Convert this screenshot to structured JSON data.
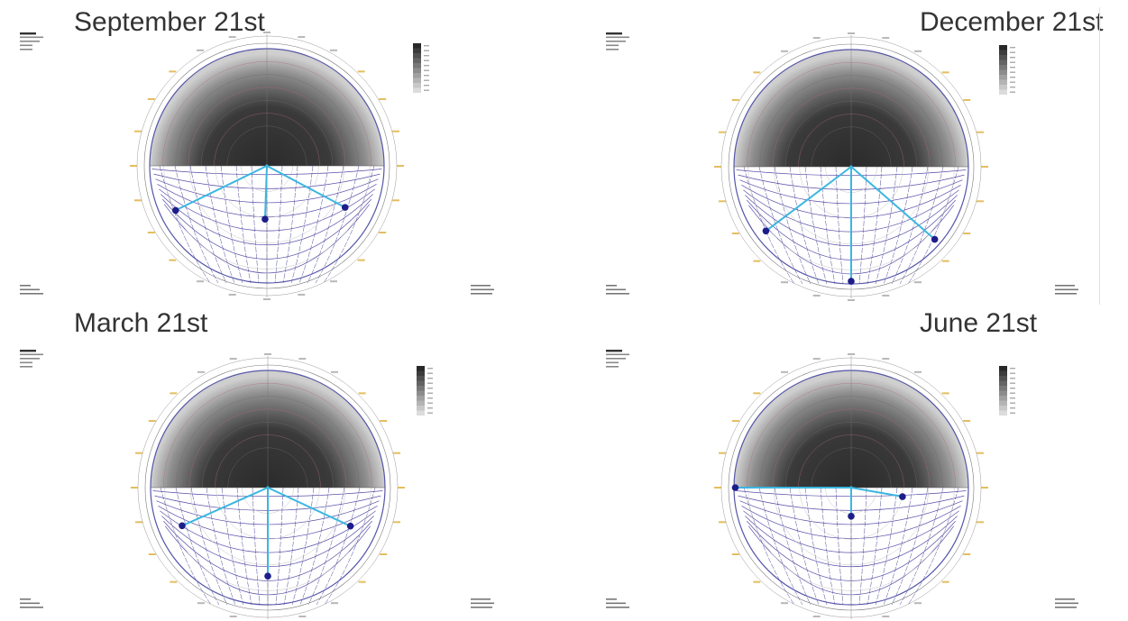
{
  "panels": [
    {
      "id": "september",
      "title": "September 21st",
      "sun_vectors": [
        {
          "azimuth_deg": 244,
          "altitude_deg": 12
        },
        {
          "azimuth_deg": 182,
          "altitude_deg": 49
        },
        {
          "azimuth_deg": 118,
          "altitude_deg": 22
        }
      ]
    },
    {
      "id": "december",
      "title": "December 21st",
      "sun_vectors": [
        {
          "azimuth_deg": 233,
          "altitude_deg": 8
        },
        {
          "azimuth_deg": 180,
          "altitude_deg": 2
        },
        {
          "azimuth_deg": 131,
          "altitude_deg": 5
        }
      ]
    },
    {
      "id": "march",
      "title": "March 21st",
      "sun_vectors": [
        {
          "azimuth_deg": 246,
          "altitude_deg": 18
        },
        {
          "azimuth_deg": 180,
          "altitude_deg": 22
        },
        {
          "azimuth_deg": 115,
          "altitude_deg": 20
        }
      ]
    },
    {
      "id": "june",
      "title": "June 21st",
      "sun_vectors": [
        {
          "azimuth_deg": 270,
          "altitude_deg": 1
        },
        {
          "azimuth_deg": 180,
          "altitude_deg": 68
        },
        {
          "azimuth_deg": 100,
          "altitude_deg": 50
        }
      ]
    }
  ],
  "colors": {
    "sun_vector": "#3ab7e0",
    "sun_marker": "#1d1d8a",
    "sky_dark": "#2a2a2a",
    "sky_light": "#cfcfcf",
    "grid": "#5a4fa8",
    "accent_labels": "#d9a21c"
  }
}
